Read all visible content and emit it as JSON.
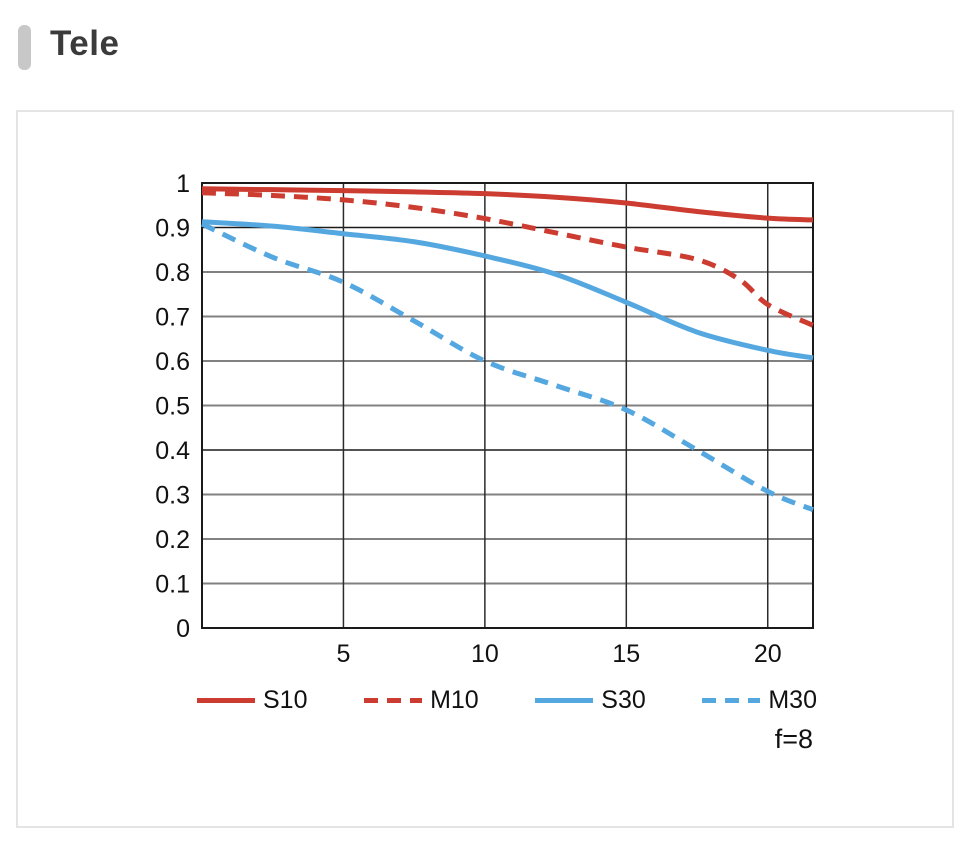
{
  "page": {
    "title": "Tele"
  },
  "chart_data": {
    "type": "line",
    "title": "Tele",
    "annotation": "f=8",
    "xlabel": "",
    "ylabel": "",
    "xlim": [
      0,
      21.6
    ],
    "ylim": [
      0,
      1
    ],
    "grid": "on",
    "legend_position": "bottom",
    "emphasized_gridlines": [
      0.9,
      0.4
    ],
    "x_ticks": [
      {
        "value": 5,
        "label": "5"
      },
      {
        "value": 10,
        "label": "10"
      },
      {
        "value": 15,
        "label": "15"
      },
      {
        "value": 20,
        "label": "20"
      }
    ],
    "y_ticks": [
      {
        "value": 0,
        "label": "0"
      },
      {
        "value": 0.1,
        "label": "0.1"
      },
      {
        "value": 0.2,
        "label": "0.2"
      },
      {
        "value": 0.3,
        "label": "0.3"
      },
      {
        "value": 0.4,
        "label": "0.4"
      },
      {
        "value": 0.5,
        "label": "0.5"
      },
      {
        "value": 0.6,
        "label": "0.6"
      },
      {
        "value": 0.7,
        "label": "0.7"
      },
      {
        "value": 0.8,
        "label": "0.8"
      },
      {
        "value": 0.9,
        "label": "0.9"
      },
      {
        "value": 1,
        "label": "1"
      }
    ],
    "series": [
      {
        "name": "S10",
        "color": "#cc3c30",
        "style": "solid",
        "x": [
          0,
          2.5,
          5,
          7.5,
          10,
          12.5,
          15,
          17.5,
          20,
          21.6
        ],
        "y": [
          0.987,
          0.985,
          0.983,
          0.98,
          0.976,
          0.968,
          0.955,
          0.936,
          0.921,
          0.917
        ]
      },
      {
        "name": "M10",
        "color": "#cc3c30",
        "style": "dashed",
        "x": [
          0,
          2.5,
          5,
          7.5,
          10,
          12.5,
          15,
          17.5,
          19,
          20,
          21.6
        ],
        "y": [
          0.978,
          0.972,
          0.962,
          0.945,
          0.92,
          0.888,
          0.856,
          0.828,
          0.783,
          0.727,
          0.68
        ]
      },
      {
        "name": "S30",
        "color": "#55a7e0",
        "style": "solid",
        "x": [
          0,
          2.5,
          5,
          7.5,
          10,
          12.5,
          15,
          17.5,
          20,
          21.6
        ],
        "y": [
          0.913,
          0.903,
          0.886,
          0.868,
          0.836,
          0.795,
          0.732,
          0.665,
          0.624,
          0.607
        ]
      },
      {
        "name": "M30",
        "color": "#55a7e0",
        "style": "dashed",
        "x": [
          0,
          2.5,
          5,
          7.5,
          10,
          12.5,
          15,
          17.5,
          20,
          21.6
        ],
        "y": [
          0.908,
          0.833,
          0.777,
          0.69,
          0.6,
          0.545,
          0.49,
          0.4,
          0.307,
          0.266
        ]
      }
    ]
  }
}
